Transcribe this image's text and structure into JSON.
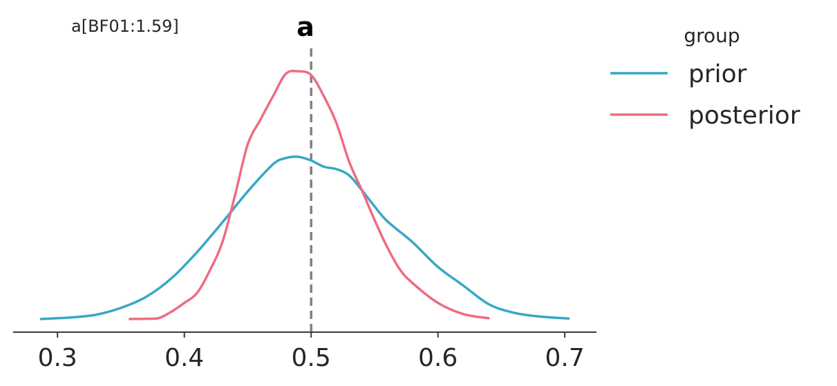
{
  "chart_data": {
    "type": "line",
    "title": "a",
    "annotation": "a[BF01:1.59]",
    "xlim": [
      0.265,
      0.725
    ],
    "ylim": [
      0,
      1.04
    ],
    "x_ticks": [
      0.3,
      0.4,
      0.5,
      0.6,
      0.7
    ],
    "x_tick_labels": [
      "0.3",
      "0.4",
      "0.5",
      "0.6",
      "0.7"
    ],
    "reference_line": {
      "x": 0.5,
      "style": "dashed",
      "color": "#808080"
    },
    "grid": false,
    "legend": {
      "title": "group",
      "placement": "outside-right"
    },
    "series": [
      {
        "name": "prior",
        "color": "#36a8c4",
        "x": [
          0.287,
          0.31,
          0.33,
          0.35,
          0.37,
          0.39,
          0.41,
          0.43,
          0.45,
          0.47,
          0.48,
          0.49,
          0.5,
          0.51,
          0.52,
          0.53,
          0.54,
          0.55,
          0.56,
          0.58,
          0.6,
          0.62,
          0.64,
          0.66,
          0.68,
          0.703
        ],
        "y": [
          0.0,
          0.006,
          0.017,
          0.045,
          0.09,
          0.165,
          0.27,
          0.39,
          0.515,
          0.625,
          0.65,
          0.655,
          0.64,
          0.615,
          0.605,
          0.58,
          0.52,
          0.455,
          0.395,
          0.31,
          0.21,
          0.135,
          0.06,
          0.025,
          0.01,
          0.002
        ]
      },
      {
        "name": "posterior",
        "color": "#f06b82",
        "x": [
          0.357,
          0.37,
          0.38,
          0.39,
          0.4,
          0.41,
          0.42,
          0.43,
          0.44,
          0.45,
          0.46,
          0.47,
          0.48,
          0.49,
          0.5,
          0.51,
          0.52,
          0.53,
          0.54,
          0.55,
          0.56,
          0.57,
          0.58,
          0.6,
          0.62,
          0.64
        ],
        "y": [
          0.0,
          0.001,
          0.004,
          0.03,
          0.065,
          0.105,
          0.195,
          0.31,
          0.5,
          0.705,
          0.805,
          0.9,
          0.99,
          1.0,
          0.985,
          0.9,
          0.79,
          0.635,
          0.52,
          0.4,
          0.29,
          0.2,
          0.145,
          0.065,
          0.02,
          0.003
        ]
      }
    ]
  }
}
